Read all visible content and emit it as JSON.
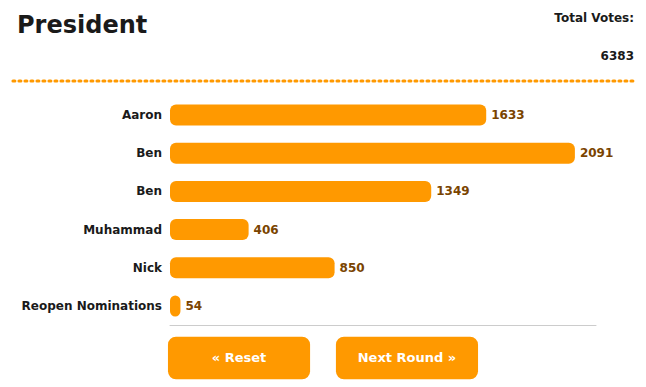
{
  "chart_data": {
    "type": "bar",
    "title": "President",
    "orientation": "horizontal",
    "categories": [
      "Aaron",
      "Ben",
      "Ben",
      "Muhammad",
      "Nick",
      "Reopen Nominations"
    ],
    "values": [
      1633,
      2091,
      1349,
      406,
      850,
      54
    ],
    "color": "#FF9900",
    "xlim": [
      0,
      2200
    ],
    "data_labels": true,
    "tick_labels": "y",
    "grid": false,
    "annotations": [
      "Total Votes:",
      "6383",
      "« Reset",
      "Next Round »"
    ]
  }
}
